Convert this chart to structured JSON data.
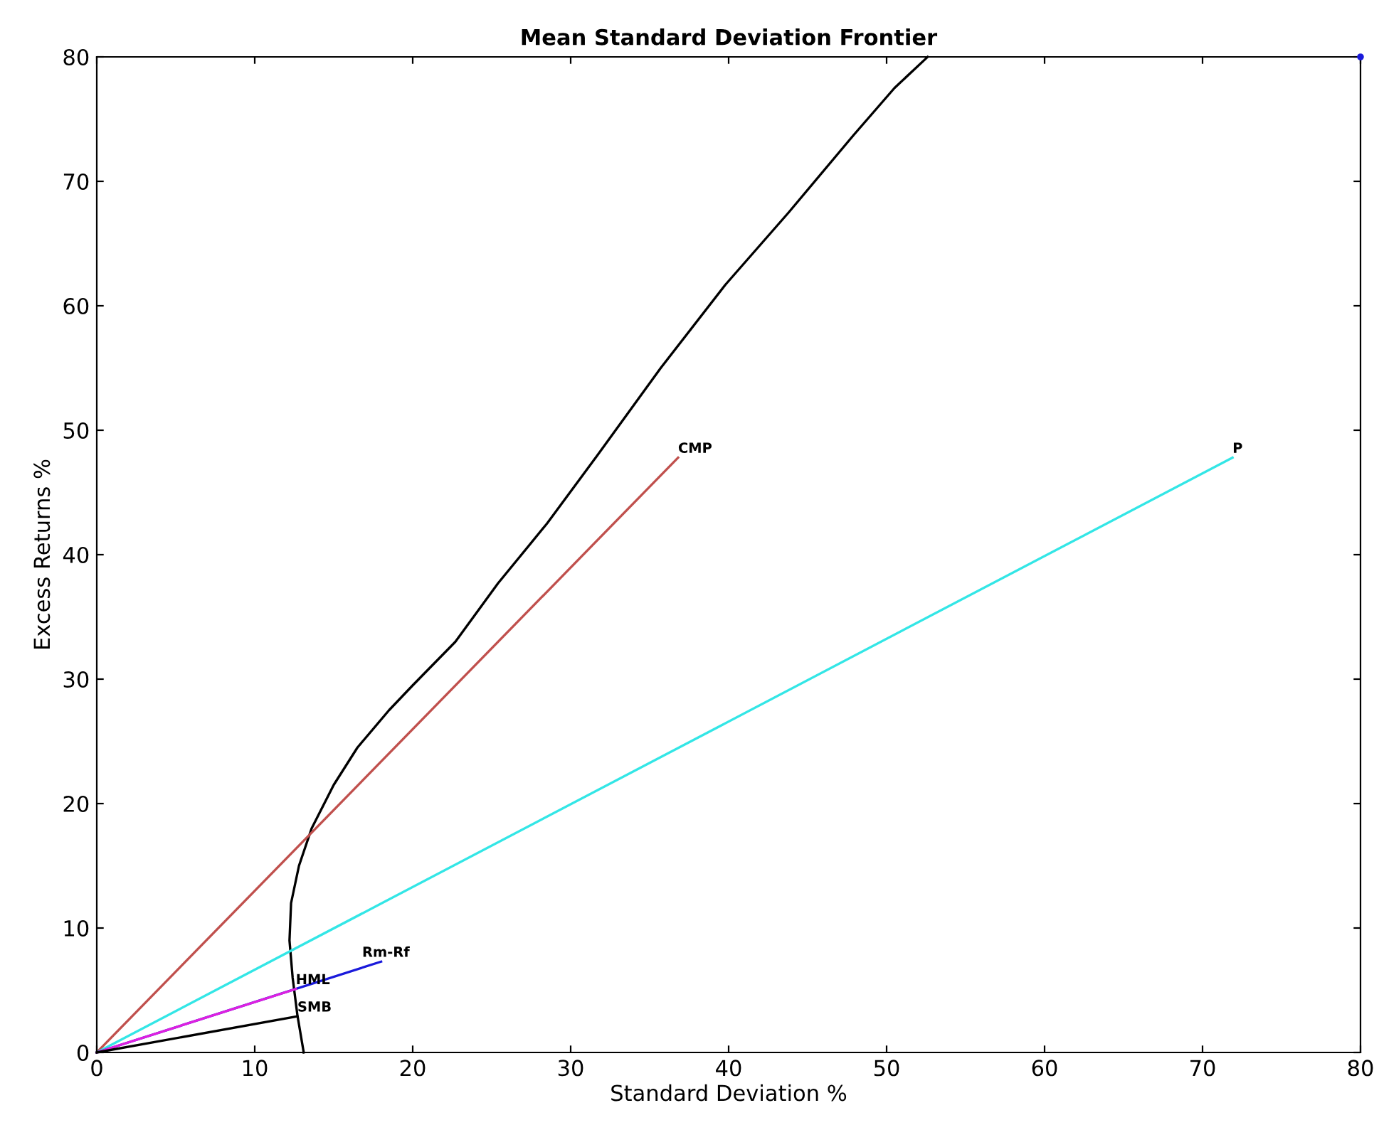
{
  "chart_data": {
    "type": "line",
    "title": "Mean Standard Deviation Frontier",
    "xlabel": "Standard Deviation %",
    "ylabel": "Excess Returns %",
    "xlim": [
      0,
      80
    ],
    "ylim": [
      0,
      80
    ],
    "xticks": [
      0,
      10,
      20,
      30,
      40,
      50,
      60,
      70,
      80
    ],
    "yticks": [
      0,
      10,
      20,
      30,
      40,
      50,
      60,
      70,
      80
    ],
    "grid": false,
    "legend": false,
    "series": [
      {
        "color": "#000000",
        "x": [
          13.1,
          12.7,
          12.4,
          12.2,
          12.3,
          12.8,
          13.6,
          15.0,
          16.5,
          18.5,
          20,
          22.7,
          25.4,
          28.5,
          31.7,
          35.7,
          39.8,
          43.8,
          47.9,
          50.5,
          52.6
        ],
        "values": [
          0,
          3,
          6,
          9,
          12,
          15,
          18,
          21.5,
          24.5,
          27.5,
          29.5,
          33,
          37.7,
          42.5,
          48,
          55,
          61.7,
          67.5,
          73.7,
          77.5,
          80
        ]
      },
      {
        "color": "#c0504d",
        "x": [
          0,
          36.8
        ],
        "values": [
          0,
          47.8
        ]
      },
      {
        "color": "#33e6e6",
        "x": [
          0,
          71.9
        ],
        "values": [
          0,
          47.8
        ]
      },
      {
        "color": "#1a1adb",
        "x": [
          0,
          18.0
        ],
        "values": [
          0,
          7.3
        ]
      },
      {
        "color": "#e020e0",
        "x": [
          0,
          12.6
        ],
        "values": [
          0,
          5.1
        ]
      },
      {
        "color": "#000000",
        "x": [
          0,
          12.7
        ],
        "values": [
          0,
          2.9
        ]
      },
      {
        "type": "scatter",
        "color": "#1a1adb",
        "x": [
          80
        ],
        "values": [
          80
        ]
      }
    ],
    "annotations": [
      {
        "text": "CMP",
        "x": 36.8,
        "y": 47.8
      },
      {
        "text": "P",
        "x": 71.9,
        "y": 47.8
      },
      {
        "text": "Rm-Rf",
        "x": 16.8,
        "y": 7.3
      },
      {
        "text": "HML",
        "x": 12.6,
        "y": 5.1
      },
      {
        "text": "SMB",
        "x": 12.7,
        "y": 2.9
      }
    ]
  }
}
